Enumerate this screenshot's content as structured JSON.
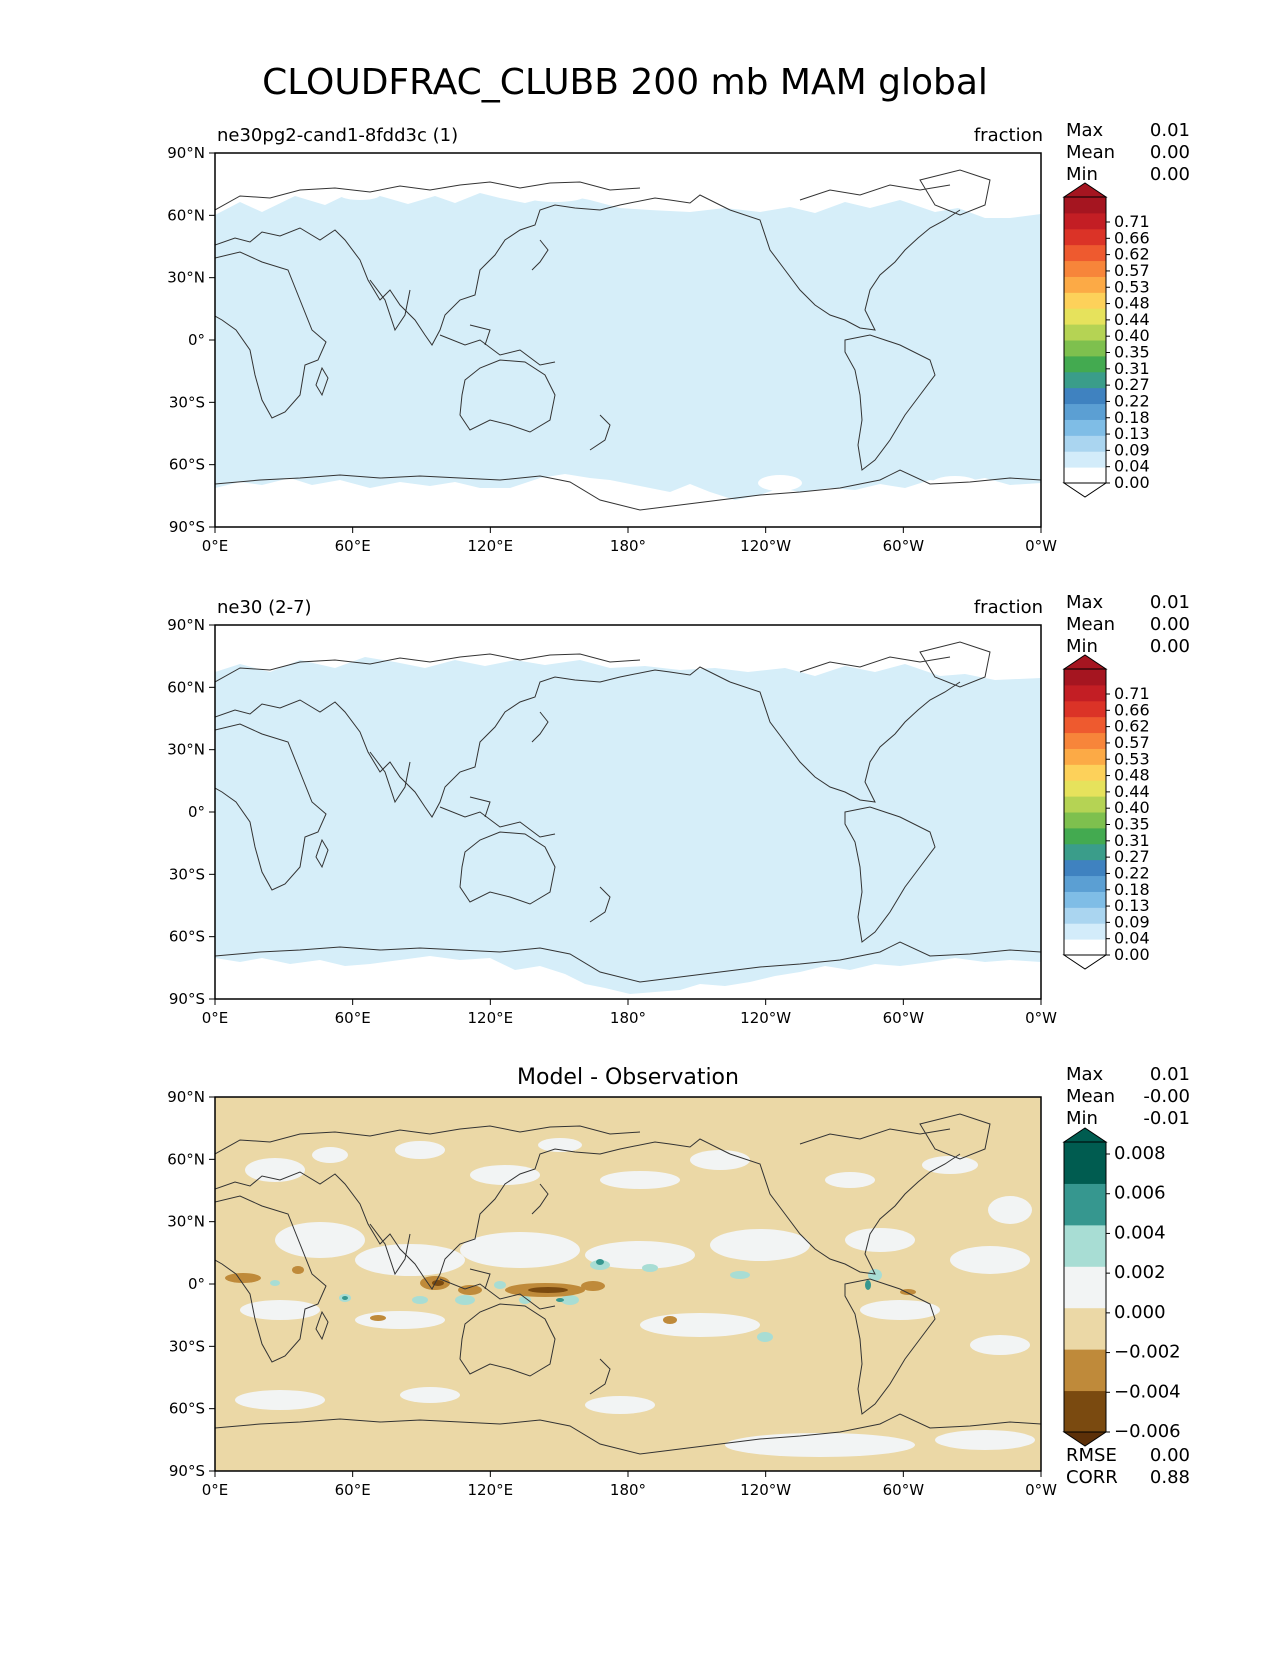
{
  "figure": {
    "title": "CLOUDFRAC_CLUBB 200 mb MAM global"
  },
  "colors": {
    "light_blue_fill": "#d6eef9",
    "diff_tan": "#ebd8a6",
    "diff_white": "#f2f4f4",
    "diff_teal_light": "#a8ddd4",
    "diff_brown": "#bf8a3a",
    "diff_brown_dark": "#7a4a10",
    "diff_teal": "#36978f"
  },
  "axes": {
    "lat_labels": [
      "90°N",
      "60°N",
      "30°N",
      "0°",
      "30°S",
      "60°S",
      "90°S"
    ],
    "lon_labels": [
      "0°E",
      "60°E",
      "120°E",
      "180°",
      "120°W",
      "60°W",
      "0°W"
    ]
  },
  "panels": [
    {
      "left_title": "ne30pg2-cand1-8fdd3c (1)",
      "right_title": "fraction",
      "center_title": "",
      "stats": [
        {
          "label": "Max",
          "value": "0.01"
        },
        {
          "label": "Mean",
          "value": "0.00"
        },
        {
          "label": "Min",
          "value": "0.00"
        }
      ],
      "extra_stats": []
    },
    {
      "left_title": "ne30 (2-7)",
      "right_title": "fraction",
      "center_title": "",
      "stats": [
        {
          "label": "Max",
          "value": "0.01"
        },
        {
          "label": "Mean",
          "value": "0.00"
        },
        {
          "label": "Min",
          "value": "0.00"
        }
      ],
      "extra_stats": []
    },
    {
      "left_title": "",
      "right_title": "",
      "center_title": "Model - Observation",
      "stats": [
        {
          "label": "Max",
          "value": "0.01"
        },
        {
          "label": "Mean",
          "value": "-0.00"
        },
        {
          "label": "Min",
          "value": "-0.01"
        }
      ],
      "extra_stats": [
        {
          "label": "RMSE",
          "value": "0.00"
        },
        {
          "label": "CORR",
          "value": "0.88"
        }
      ]
    }
  ],
  "colorbars": {
    "main": {
      "ticks": [
        "0.71",
        "0.66",
        "0.62",
        "0.57",
        "0.53",
        "0.48",
        "0.44",
        "0.40",
        "0.35",
        "0.31",
        "0.27",
        "0.22",
        "0.18",
        "0.13",
        "0.09",
        "0.04",
        "0.00"
      ],
      "colors": [
        "#ffffff",
        "#d3ecfa",
        "#aad5f0",
        "#7fbde6",
        "#5b9fd3",
        "#3f82c0",
        "#3a9d8a",
        "#43aa50",
        "#7ec04e",
        "#b5d354",
        "#e6e25c",
        "#fdd15a",
        "#fcaa46",
        "#f7853a",
        "#ee5a2f",
        "#db3327",
        "#c31e24",
        "#a51520"
      ]
    },
    "diff": {
      "ticks": [
        "0.008",
        "0.006",
        "0.004",
        "0.002",
        "0.000",
        "−0.002",
        "−0.004",
        "−0.006"
      ],
      "colors": [
        "#7a4a10",
        "#bf8a3a",
        "#ebd8a6",
        "#f2f4f4",
        "#a8ddd4",
        "#36978f",
        "#005c50"
      ]
    }
  },
  "chart_data": [
    {
      "type": "heatmap",
      "title": "ne30pg2-cand1-8fdd3c (1)",
      "variable": "CLOUDFRAC_CLUBB 200 mb MAM",
      "units": "fraction",
      "xlim": [
        0,
        360
      ],
      "ylim": [
        -90,
        90
      ],
      "stats": {
        "max": 0.01,
        "mean": 0.0,
        "min": 0.0
      }
    },
    {
      "type": "heatmap",
      "title": "ne30 (2-7)",
      "variable": "CLOUDFRAC_CLUBB 200 mb MAM",
      "units": "fraction",
      "xlim": [
        0,
        360
      ],
      "ylim": [
        -90,
        90
      ],
      "stats": {
        "max": 0.01,
        "mean": 0.0,
        "min": 0.0
      }
    },
    {
      "type": "heatmap",
      "title": "Model - Observation",
      "xlim": [
        0,
        360
      ],
      "ylim": [
        -90,
        90
      ],
      "stats": {
        "max": 0.01,
        "mean": -0.0,
        "min": -0.01,
        "rmse": 0.0,
        "corr": 0.88
      }
    }
  ]
}
